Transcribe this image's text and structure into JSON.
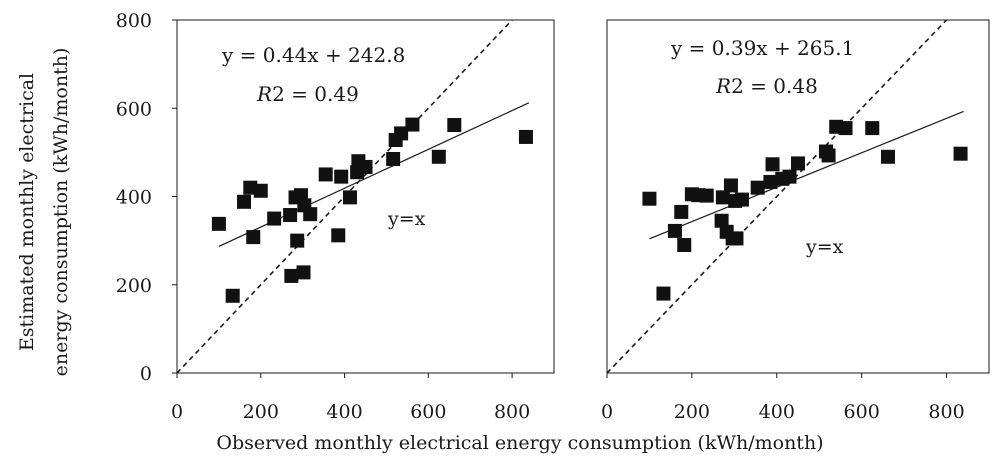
{
  "figure": {
    "ylabel_lines": [
      "Estimated monthly electrical",
      "energy consumption (kWh/month)"
    ],
    "xlabel": "Observed monthly electrical energy consumption (kWh/month)"
  },
  "chart_data": [
    {
      "type": "scatter",
      "xlim": [
        0,
        900
      ],
      "ylim": [
        0,
        800
      ],
      "x_ticks": [
        "0",
        "200",
        "400",
        "600",
        "800"
      ],
      "y_ticks": [
        "0",
        "200",
        "400",
        "600",
        "800"
      ],
      "grid": false,
      "equation": "y = 0.44x + 242.8",
      "r2_label": "R",
      "r2_value": "2 = 0.49",
      "identity_label": "y=x",
      "fit": {
        "slope": 0.44,
        "intercept": 242.8,
        "x_range": [
          100,
          840
        ]
      },
      "points": [
        {
          "x": 100,
          "y": 338
        },
        {
          "x": 133,
          "y": 175
        },
        {
          "x": 160,
          "y": 388
        },
        {
          "x": 175,
          "y": 420
        },
        {
          "x": 182,
          "y": 308
        },
        {
          "x": 200,
          "y": 413
        },
        {
          "x": 232,
          "y": 350
        },
        {
          "x": 270,
          "y": 358
        },
        {
          "x": 273,
          "y": 220
        },
        {
          "x": 283,
          "y": 398
        },
        {
          "x": 287,
          "y": 300
        },
        {
          "x": 296,
          "y": 403
        },
        {
          "x": 302,
          "y": 228
        },
        {
          "x": 304,
          "y": 380
        },
        {
          "x": 318,
          "y": 360
        },
        {
          "x": 355,
          "y": 450
        },
        {
          "x": 385,
          "y": 312
        },
        {
          "x": 392,
          "y": 445
        },
        {
          "x": 413,
          "y": 398
        },
        {
          "x": 430,
          "y": 455
        },
        {
          "x": 433,
          "y": 480
        },
        {
          "x": 450,
          "y": 467
        },
        {
          "x": 516,
          "y": 485
        },
        {
          "x": 522,
          "y": 528
        },
        {
          "x": 535,
          "y": 543
        },
        {
          "x": 562,
          "y": 563
        },
        {
          "x": 625,
          "y": 490
        },
        {
          "x": 662,
          "y": 562
        },
        {
          "x": 833,
          "y": 535
        }
      ]
    },
    {
      "type": "scatter",
      "xlim": [
        0,
        900
      ],
      "ylim": [
        0,
        800
      ],
      "x_ticks": [
        "0",
        "200",
        "400",
        "600",
        "800"
      ],
      "grid": false,
      "equation": "y = 0.39x + 265.1",
      "r2_label": "R",
      "r2_value": "2 = 0.48",
      "identity_label": "y=x",
      "fit": {
        "slope": 0.39,
        "intercept": 265.1,
        "x_range": [
          100,
          840
        ]
      },
      "points": [
        {
          "x": 100,
          "y": 395
        },
        {
          "x": 133,
          "y": 180
        },
        {
          "x": 160,
          "y": 322
        },
        {
          "x": 175,
          "y": 365
        },
        {
          "x": 182,
          "y": 290
        },
        {
          "x": 200,
          "y": 405
        },
        {
          "x": 215,
          "y": 403
        },
        {
          "x": 235,
          "y": 402
        },
        {
          "x": 270,
          "y": 345
        },
        {
          "x": 273,
          "y": 398
        },
        {
          "x": 282,
          "y": 320
        },
        {
          "x": 292,
          "y": 425
        },
        {
          "x": 296,
          "y": 305
        },
        {
          "x": 302,
          "y": 390
        },
        {
          "x": 305,
          "y": 305
        },
        {
          "x": 318,
          "y": 393
        },
        {
          "x": 355,
          "y": 420
        },
        {
          "x": 385,
          "y": 433
        },
        {
          "x": 390,
          "y": 473
        },
        {
          "x": 413,
          "y": 440
        },
        {
          "x": 430,
          "y": 445
        },
        {
          "x": 450,
          "y": 475
        },
        {
          "x": 516,
          "y": 502
        },
        {
          "x": 522,
          "y": 493
        },
        {
          "x": 540,
          "y": 558
        },
        {
          "x": 562,
          "y": 555
        },
        {
          "x": 625,
          "y": 555
        },
        {
          "x": 662,
          "y": 490
        },
        {
          "x": 833,
          "y": 497
        }
      ]
    }
  ]
}
